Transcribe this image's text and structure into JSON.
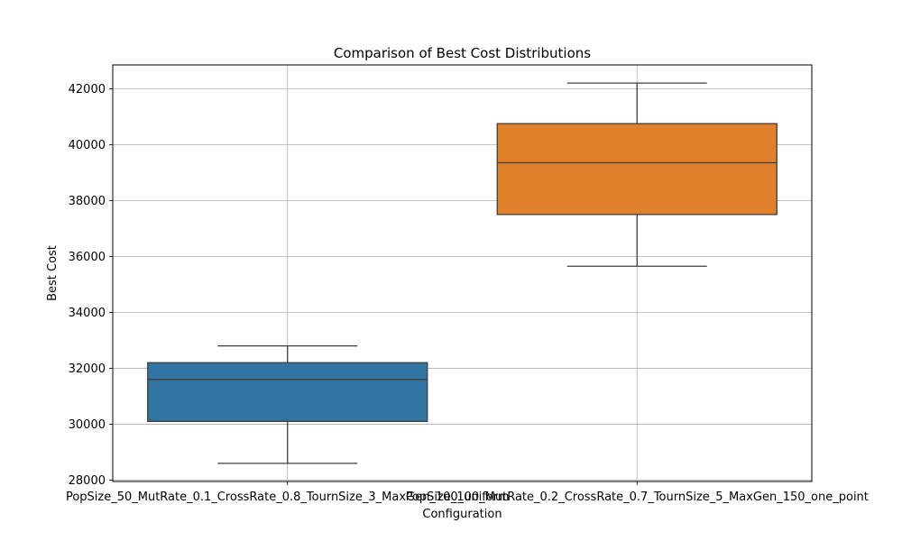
{
  "chart_data": {
    "type": "box",
    "title": "Comparison of Best Cost Distributions",
    "xlabel": "Configuration",
    "ylabel": "Best Cost",
    "categories": [
      "PopSize_50_MutRate_0.1_CrossRate_0.8_TournSize_3_MaxGen_100_uniform",
      "PopSize_100_MutRate_0.2_CrossRate_0.7_TournSize_5_MaxGen_150_one_point"
    ],
    "boxes": [
      {
        "whisker_low": 28600,
        "q1": 30100,
        "median": 31600,
        "q3": 32200,
        "whisker_high": 32800,
        "color": "#3274a1"
      },
      {
        "whisker_low": 35650,
        "q1": 37500,
        "median": 39350,
        "q3": 40750,
        "whisker_high": 42200,
        "color": "#e1812c"
      }
    ],
    "ylim": [
      27950,
      42850
    ],
    "yticks": [
      28000,
      30000,
      32000,
      34000,
      36000,
      38000,
      40000,
      42000
    ],
    "grid": true
  }
}
